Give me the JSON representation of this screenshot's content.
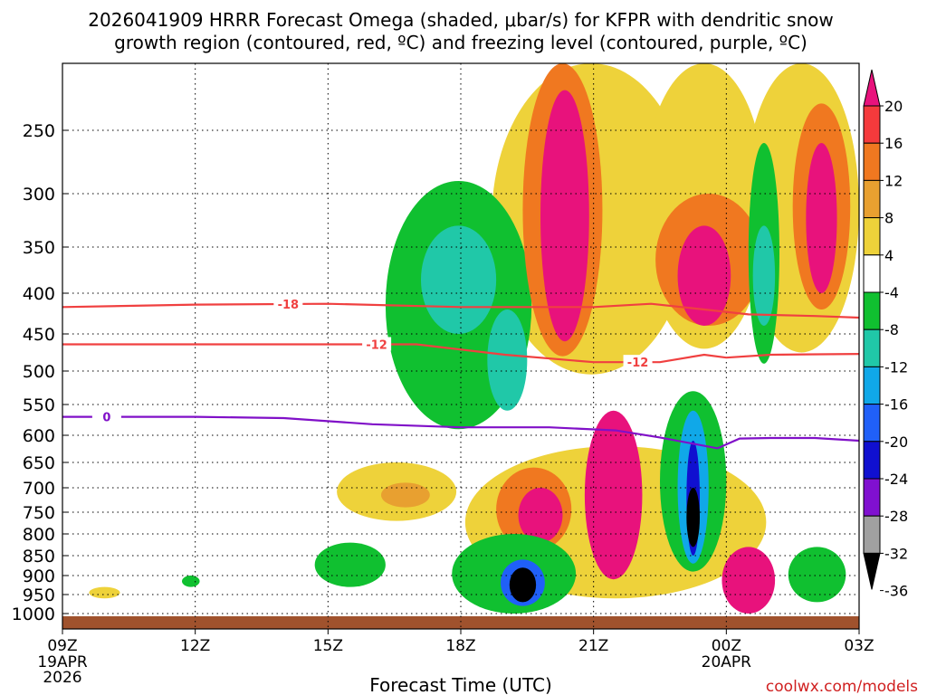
{
  "chart_data": {
    "type": "time-height cross-section (filled contour)",
    "title_line1": "2026041909 HRRR Forecast Omega (shaded, μbar/s) for KFPR with dendritic snow",
    "title_line2": "growth region (contoured, red, ºC) and freezing level (contoured, purple, ºC)",
    "xlabel": "Forecast Time (UTC)",
    "x_ticks": [
      {
        "hour": 0,
        "label": "09Z"
      },
      {
        "hour": 3,
        "label": "12Z"
      },
      {
        "hour": 6,
        "label": "15Z"
      },
      {
        "hour": 9,
        "label": "18Z"
      },
      {
        "hour": 12,
        "label": "21Z"
      },
      {
        "hour": 15,
        "label": "00Z"
      },
      {
        "hour": 18,
        "label": "03Z"
      }
    ],
    "x_sublabels": [
      {
        "hour": 0,
        "lines": [
          "19APR",
          "2026"
        ]
      },
      {
        "hour": 15,
        "lines": [
          "20APR"
        ]
      }
    ],
    "ylabel": "",
    "y_ticks": [
      250,
      300,
      350,
      400,
      450,
      500,
      550,
      600,
      650,
      700,
      750,
      800,
      850,
      900,
      950,
      1000
    ],
    "ylim": [
      200,
      1030
    ],
    "colorbar": {
      "labels": [
        "20",
        "16",
        "12",
        "8",
        "4",
        "-4",
        "-8",
        "-12",
        "-16",
        "-20",
        "-24",
        "-28",
        "-32",
        "-36"
      ],
      "colors": [
        "#e8127c",
        "#f53a3c",
        "#f07820",
        "#e8a030",
        "#eed23a",
        "#ffffff",
        "#10c030",
        "#20c8a8",
        "#10a8e8",
        "#2060f8",
        "#1010d0",
        "#8010d0",
        "#a0a0a0",
        "#000000"
      ]
    },
    "lines": [
      {
        "name": "dgz -18C",
        "label": "-18",
        "color": "#f04040",
        "points": [
          [
            0,
            417
          ],
          [
            3,
            414
          ],
          [
            6,
            413
          ],
          [
            9,
            417
          ],
          [
            12,
            417
          ],
          [
            13.3,
            413
          ],
          [
            14.5,
            420
          ],
          [
            15.5,
            426
          ],
          [
            17,
            428
          ],
          [
            18,
            430
          ]
        ]
      },
      {
        "name": "dgz -12C",
        "label": "-12",
        "color": "#f04040",
        "points": [
          [
            0,
            464
          ],
          [
            3,
            464
          ],
          [
            6,
            464
          ],
          [
            8,
            464
          ],
          [
            10,
            478
          ],
          [
            12,
            488
          ],
          [
            13.5,
            488
          ],
          [
            14.5,
            478
          ],
          [
            15,
            482
          ],
          [
            16,
            478
          ],
          [
            18,
            477
          ]
        ]
      },
      {
        "name": "freezing level 0C",
        "label": "0",
        "color": "#8010c8",
        "points": [
          [
            0,
            570
          ],
          [
            3,
            570
          ],
          [
            5,
            572
          ],
          [
            7,
            582
          ],
          [
            9,
            587
          ],
          [
            11,
            587
          ],
          [
            12.5,
            592
          ],
          [
            13.5,
            604
          ],
          [
            14.8,
            624
          ],
          [
            15.3,
            606
          ],
          [
            16,
            605
          ],
          [
            17,
            605
          ],
          [
            18,
            610
          ]
        ]
      }
    ],
    "shaded_regions": [
      {
        "color": "#eed23a",
        "hour": [
          9.7,
          14.2
        ],
        "p": [
          200,
          505
        ]
      },
      {
        "color": "#eed23a",
        "hour": [
          13.1,
          15.9
        ],
        "p": [
          200,
          470
        ]
      },
      {
        "color": "#eed23a",
        "hour": [
          15.4,
          18.0
        ],
        "p": [
          200,
          475
        ]
      },
      {
        "color": "#10c030",
        "hour": [
          7.3,
          10.6
        ],
        "p": [
          290,
          590
        ]
      },
      {
        "color": "#20c8a8",
        "hour": [
          8.1,
          9.8
        ],
        "p": [
          330,
          450
        ]
      },
      {
        "color": "#20c8a8",
        "hour": [
          9.6,
          10.5
        ],
        "p": [
          420,
          560
        ]
      },
      {
        "color": "#f07820",
        "hour": [
          10.4,
          12.2
        ],
        "p": [
          200,
          480
        ]
      },
      {
        "color": "#e8127c",
        "hour": [
          10.8,
          11.9
        ],
        "p": [
          220,
          460
        ]
      },
      {
        "color": "#f07820",
        "hour": [
          13.4,
          15.8
        ],
        "p": [
          300,
          440
        ]
      },
      {
        "color": "#e8127c",
        "hour": [
          13.9,
          15.1
        ],
        "p": [
          330,
          440
        ]
      },
      {
        "color": "#10c030",
        "hour": [
          15.5,
          16.2
        ],
        "p": [
          260,
          490
        ]
      },
      {
        "color": "#20c8a8",
        "hour": [
          15.6,
          16.1
        ],
        "p": [
          330,
          440
        ]
      },
      {
        "color": "#f07820",
        "hour": [
          16.5,
          17.8
        ],
        "p": [
          230,
          420
        ]
      },
      {
        "color": "#e8127c",
        "hour": [
          16.8,
          17.5
        ],
        "p": [
          260,
          400
        ]
      },
      {
        "color": "#eed23a",
        "hour": [
          6.2,
          8.9
        ],
        "p": [
          650,
          770
        ]
      },
      {
        "color": "#e8a030",
        "hour": [
          7.2,
          8.3
        ],
        "p": [
          690,
          740
        ]
      },
      {
        "color": "#eed23a",
        "hour": [
          9.1,
          15.9
        ],
        "p": [
          620,
          960
        ]
      },
      {
        "color": "#f07820",
        "hour": [
          9.8,
          11.5
        ],
        "p": [
          660,
          840
        ]
      },
      {
        "color": "#e8127c",
        "hour": [
          10.3,
          11.3
        ],
        "p": [
          700,
          820
        ]
      },
      {
        "color": "#e8127c",
        "hour": [
          11.8,
          13.1
        ],
        "p": [
          560,
          910
        ]
      },
      {
        "color": "#10c030",
        "hour": [
          13.5,
          15.0
        ],
        "p": [
          530,
          890
        ]
      },
      {
        "color": "#10a8e8",
        "hour": [
          13.9,
          14.6
        ],
        "p": [
          560,
          870
        ]
      },
      {
        "color": "#1010d0",
        "hour": [
          14.1,
          14.4
        ],
        "p": [
          610,
          850
        ]
      },
      {
        "color": "#000000",
        "hour": [
          14.1,
          14.4
        ],
        "p": [
          700,
          830
        ]
      },
      {
        "color": "#10c030",
        "hour": [
          8.8,
          11.6
        ],
        "p": [
          800,
          1000
        ]
      },
      {
        "color": "#2060f8",
        "hour": [
          9.9,
          10.9
        ],
        "p": [
          860,
          980
        ]
      },
      {
        "color": "#000000",
        "hour": [
          10.1,
          10.7
        ],
        "p": [
          880,
          970
        ]
      },
      {
        "color": "#e8127c",
        "hour": [
          14.9,
          16.1
        ],
        "p": [
          830,
          1000
        ]
      },
      {
        "color": "#10c030",
        "hour": [
          16.4,
          17.7
        ],
        "p": [
          830,
          970
        ]
      },
      {
        "color": "#10c030",
        "hour": [
          5.7,
          7.3
        ],
        "p": [
          820,
          930
        ]
      },
      {
        "color": "#eed23a",
        "hour": [
          0.6,
          1.3
        ],
        "p": [
          930,
          960
        ]
      },
      {
        "color": "#10c030",
        "hour": [
          2.7,
          3.1
        ],
        "p": [
          900,
          930
        ]
      }
    ],
    "ground": {
      "p": 1000,
      "color": "#a0522d"
    },
    "credit": "coolwx.com/models"
  }
}
